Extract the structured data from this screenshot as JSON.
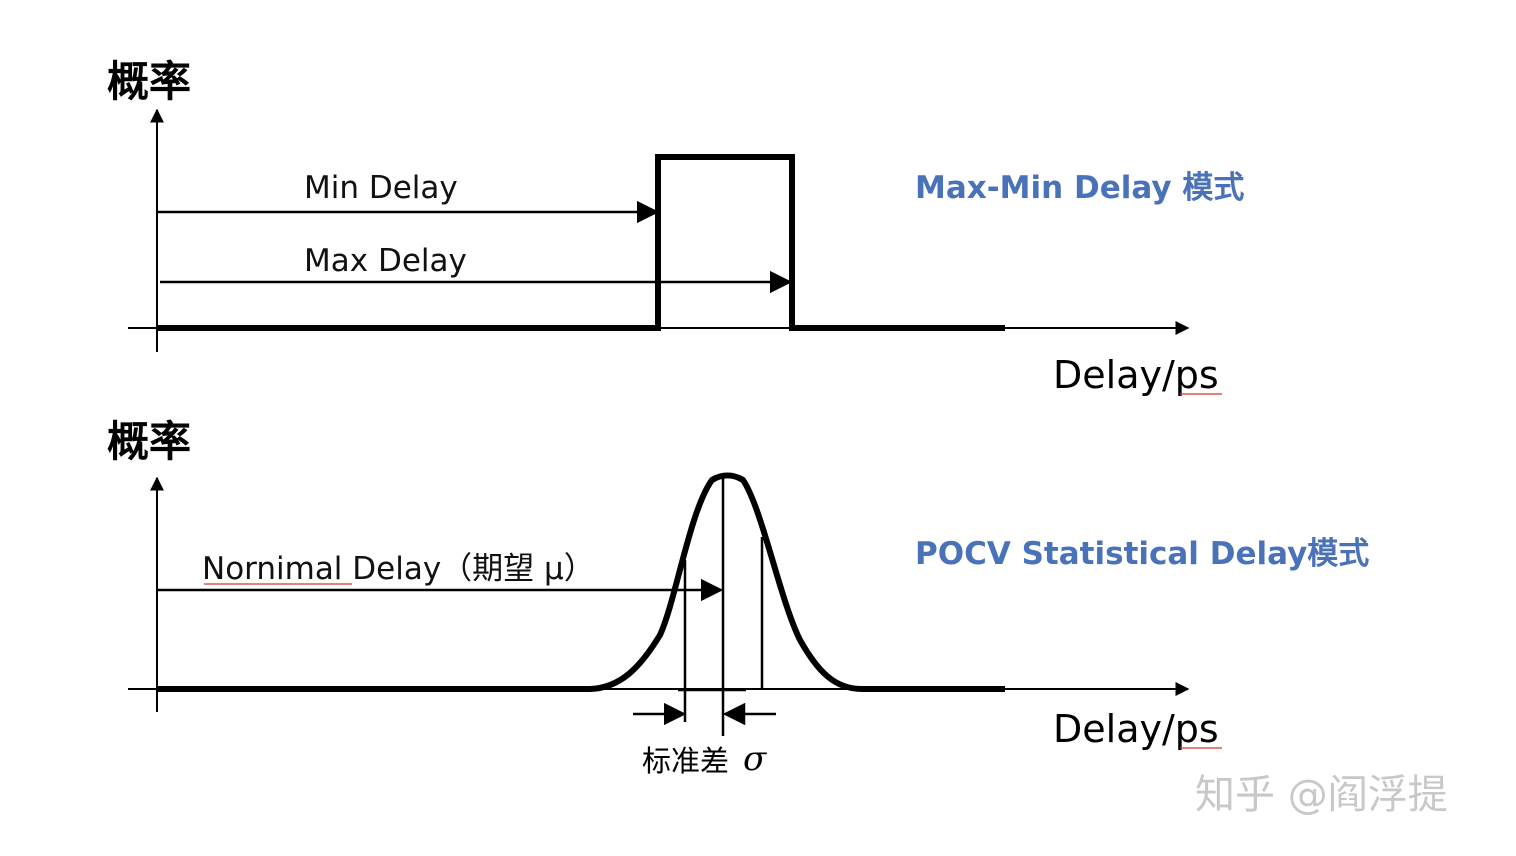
{
  "colors": {
    "accent": "#4a72b8",
    "line": "#000000",
    "watermark": "#c8c8c8"
  },
  "top_panel": {
    "ylabel": "概率",
    "xlabel": "Delay/ps",
    "min_label": "Min Delay",
    "max_label": "Max Delay",
    "mode_label": "Max-Min Delay 模式"
  },
  "bottom_panel": {
    "ylabel": "概率",
    "xlabel": "Delay/ps",
    "nominal_label": "Nornimal Delay（期望 μ）",
    "mode_label": "POCV Statistical Delay模式",
    "std_label": "标准差",
    "sigma_symbol": "σ"
  },
  "watermark": "知乎 @阎浮提"
}
